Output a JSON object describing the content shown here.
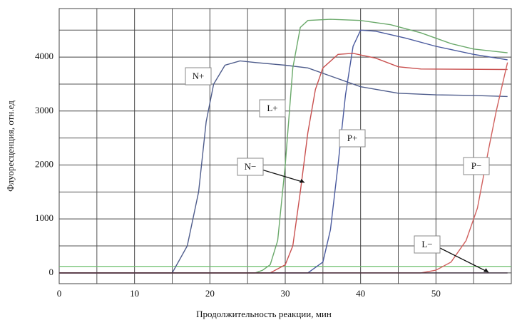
{
  "chart_data": {
    "type": "line",
    "xlabel": "Продолжительность реакции, мин",
    "ylabel": "Флуоресценция, отн.ед",
    "xlim": [
      0,
      60
    ],
    "xticks": [
      0,
      10,
      20,
      30,
      40,
      50
    ],
    "ylim": [
      -200,
      4900
    ],
    "yticks": [
      0,
      1000,
      2000,
      3000,
      4000
    ],
    "grid": true,
    "threshold": {
      "value": 120,
      "color": "#6cbf6c"
    },
    "series": [
      {
        "name": "N+",
        "color": "#4f5d8c",
        "x": [
          0,
          15,
          17,
          18.5,
          19.5,
          20.5,
          22,
          24,
          26,
          30,
          33,
          36,
          40,
          45,
          50,
          55,
          59.5
        ],
        "values": [
          0,
          0,
          500,
          1500,
          2800,
          3500,
          3850,
          3930,
          3900,
          3850,
          3800,
          3650,
          3450,
          3330,
          3300,
          3290,
          3270
        ]
      },
      {
        "name": "L+",
        "color": "#6aa96a",
        "x": [
          0,
          26,
          27,
          28,
          29,
          30,
          31,
          32,
          33,
          36,
          40,
          44,
          48,
          52,
          55,
          59.5
        ],
        "values": [
          0,
          0,
          50,
          150,
          600,
          2000,
          3800,
          4550,
          4680,
          4700,
          4680,
          4600,
          4450,
          4250,
          4150,
          4080
        ]
      },
      {
        "name": "P+",
        "color": "#4a5a9e",
        "x": [
          0,
          33,
          35,
          36,
          37,
          38,
          39,
          40,
          42,
          46,
          50,
          55,
          59.5
        ],
        "values": [
          0,
          0,
          200,
          800,
          2000,
          3300,
          4200,
          4500,
          4480,
          4350,
          4200,
          4050,
          3950
        ]
      },
      {
        "name": "N−",
        "color": "#c9504f",
        "x": [
          0,
          28,
          30,
          31,
          32,
          33,
          34,
          35,
          37,
          39,
          42,
          45,
          48,
          59.5
        ],
        "values": [
          0,
          0,
          150,
          500,
          1500,
          2600,
          3400,
          3800,
          4050,
          4070,
          3980,
          3820,
          3780,
          3770
        ]
      },
      {
        "name": "P−",
        "color": "#d0605e",
        "x": [
          0,
          48,
          50,
          52,
          54,
          55.5,
          57,
          58,
          59,
          59.5
        ],
        "values": [
          0,
          0,
          50,
          200,
          600,
          1200,
          2300,
          3000,
          3600,
          3900
        ]
      },
      {
        "name": "L−",
        "color": "#3a2a3a",
        "x": [
          0,
          20,
          40,
          59.5
        ],
        "values": [
          0,
          0,
          0,
          0
        ]
      }
    ]
  }
}
